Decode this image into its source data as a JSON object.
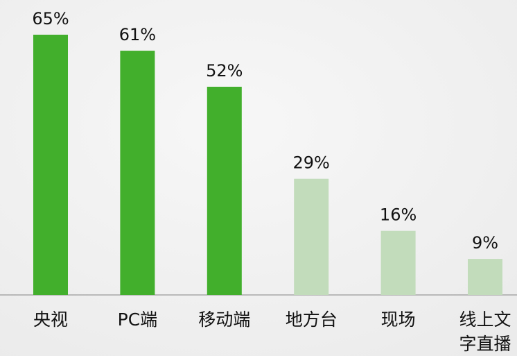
{
  "chart_data": {
    "type": "bar",
    "categories": [
      "央视",
      "PC端",
      "移动端",
      "地方台",
      "现场",
      "线上文字直播"
    ],
    "values": [
      65,
      61,
      52,
      29,
      16,
      9
    ],
    "value_labels": [
      "65%",
      "61%",
      "52%",
      "29%",
      "16%",
      "9%"
    ],
    "colors": [
      "#42af2c",
      "#42af2c",
      "#42af2c",
      "#c2dcbb",
      "#c2dcbb",
      "#c2dcbb"
    ]
  }
}
